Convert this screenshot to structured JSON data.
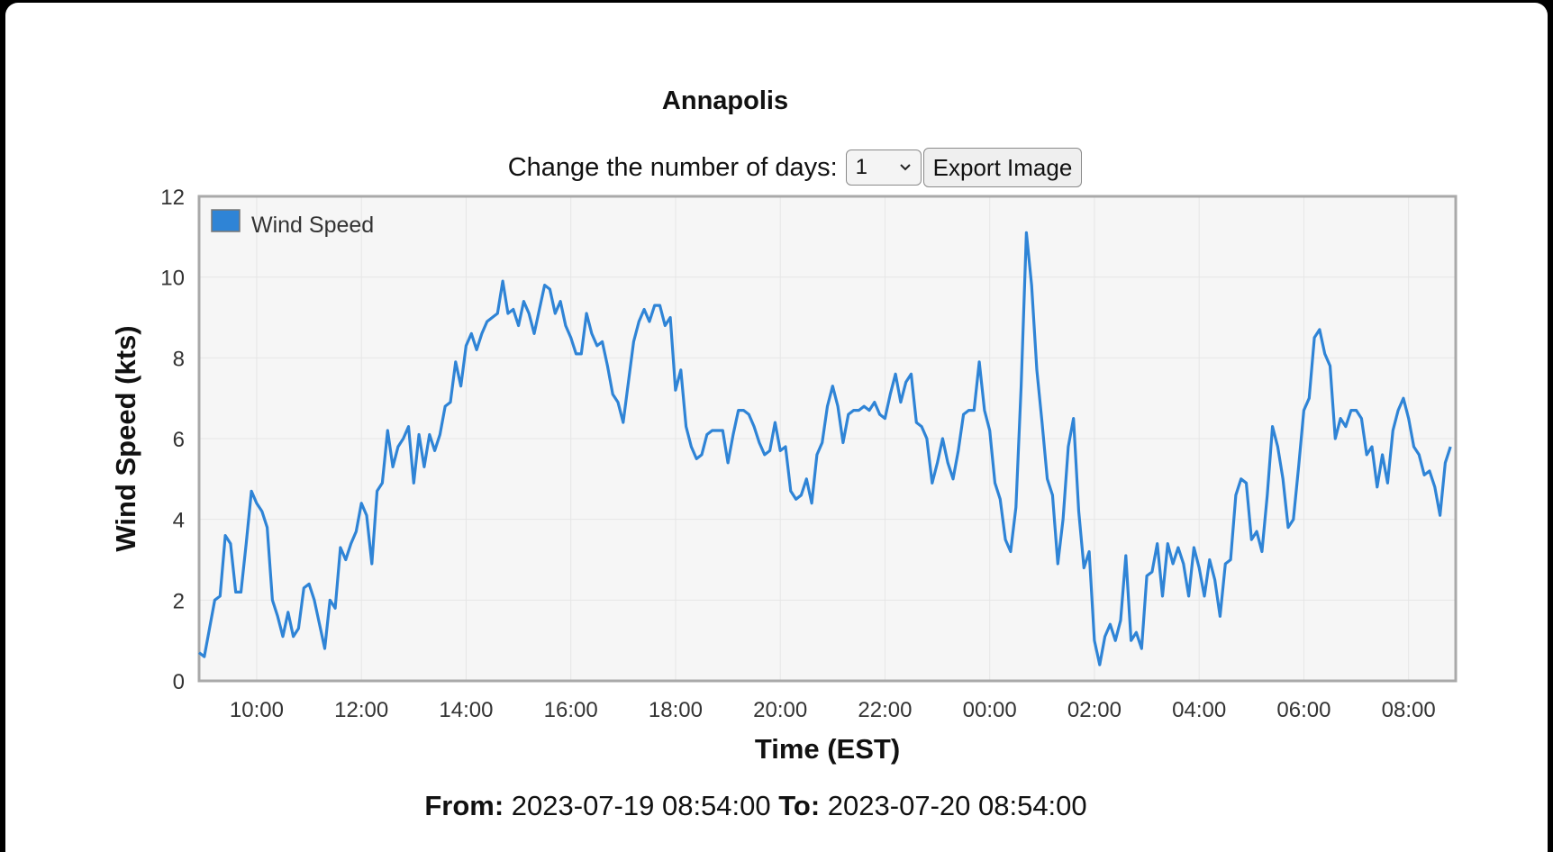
{
  "title": "Annapolis",
  "controls": {
    "days_label": "Change the number of days:",
    "days_value": "1",
    "export_label": "Export Image"
  },
  "range": {
    "from_label": "From:",
    "from_value": "2023-07-19 08:54:00",
    "to_label": "To:",
    "to_value": "2023-07-20 08:54:00"
  },
  "colors": {
    "line": "#2f84d6",
    "plot_background": "#f6f6f6",
    "plot_border": "#a9a9a9",
    "grid": "#e6e6e6"
  },
  "chart_data": {
    "type": "line",
    "title": "Annapolis",
    "xlabel": "Time (EST)",
    "ylabel": "Wind Speed (kts)",
    "ylim": [
      0,
      12
    ],
    "yticks": [
      0,
      2,
      4,
      6,
      8,
      10,
      12
    ],
    "xlim": [
      "2023-07-19 08:54",
      "2023-07-20 08:54"
    ],
    "xticks": [
      {
        "time": "2023-07-19 10:00",
        "label": "10:00"
      },
      {
        "time": "2023-07-19 12:00",
        "label": "12:00"
      },
      {
        "time": "2023-07-19 14:00",
        "label": "14:00"
      },
      {
        "time": "2023-07-19 16:00",
        "label": "16:00"
      },
      {
        "time": "2023-07-19 18:00",
        "label": "18:00"
      },
      {
        "time": "2023-07-19 20:00",
        "label": "20:00"
      },
      {
        "time": "2023-07-19 22:00",
        "label": "22:00"
      },
      {
        "time": "2023-07-20 00:00",
        "label": "00:00"
      },
      {
        "time": "2023-07-20 02:00",
        "label": "02:00"
      },
      {
        "time": "2023-07-20 04:00",
        "label": "04:00"
      },
      {
        "time": "2023-07-20 06:00",
        "label": "06:00"
      },
      {
        "time": "2023-07-20 08:00",
        "label": "08:00"
      }
    ],
    "grid": true,
    "legend": {
      "position": "top-left"
    },
    "series": [
      {
        "name": "Wind Speed",
        "color": "#2f84d6",
        "x": [
          "2023-07-19 08:54",
          "2023-07-19 09:00",
          "2023-07-19 09:06",
          "2023-07-19 09:12",
          "2023-07-19 09:18",
          "2023-07-19 09:24",
          "2023-07-19 09:30",
          "2023-07-19 09:36",
          "2023-07-19 09:42",
          "2023-07-19 09:48",
          "2023-07-19 09:54",
          "2023-07-19 10:00",
          "2023-07-19 10:06",
          "2023-07-19 10:12",
          "2023-07-19 10:18",
          "2023-07-19 10:24",
          "2023-07-19 10:30",
          "2023-07-19 10:36",
          "2023-07-19 10:42",
          "2023-07-19 10:48",
          "2023-07-19 10:54",
          "2023-07-19 11:00",
          "2023-07-19 11:06",
          "2023-07-19 11:12",
          "2023-07-19 11:18",
          "2023-07-19 11:24",
          "2023-07-19 11:30",
          "2023-07-19 11:36",
          "2023-07-19 11:42",
          "2023-07-19 11:48",
          "2023-07-19 11:54",
          "2023-07-19 12:00",
          "2023-07-19 12:06",
          "2023-07-19 12:12",
          "2023-07-19 12:18",
          "2023-07-19 12:24",
          "2023-07-19 12:30",
          "2023-07-19 12:36",
          "2023-07-19 12:42",
          "2023-07-19 12:48",
          "2023-07-19 12:54",
          "2023-07-19 13:00",
          "2023-07-19 13:06",
          "2023-07-19 13:12",
          "2023-07-19 13:18",
          "2023-07-19 13:24",
          "2023-07-19 13:30",
          "2023-07-19 13:36",
          "2023-07-19 13:42",
          "2023-07-19 13:48",
          "2023-07-19 13:54",
          "2023-07-19 14:00",
          "2023-07-19 14:06",
          "2023-07-19 14:12",
          "2023-07-19 14:18",
          "2023-07-19 14:24",
          "2023-07-19 14:30",
          "2023-07-19 14:36",
          "2023-07-19 14:42",
          "2023-07-19 14:48",
          "2023-07-19 14:54",
          "2023-07-19 15:00",
          "2023-07-19 15:06",
          "2023-07-19 15:12",
          "2023-07-19 15:18",
          "2023-07-19 15:24",
          "2023-07-19 15:30",
          "2023-07-19 15:36",
          "2023-07-19 15:42",
          "2023-07-19 15:48",
          "2023-07-19 15:54",
          "2023-07-19 16:00",
          "2023-07-19 16:06",
          "2023-07-19 16:12",
          "2023-07-19 16:18",
          "2023-07-19 16:24",
          "2023-07-19 16:30",
          "2023-07-19 16:36",
          "2023-07-19 16:42",
          "2023-07-19 16:48",
          "2023-07-19 16:54",
          "2023-07-19 17:00",
          "2023-07-19 17:06",
          "2023-07-19 17:12",
          "2023-07-19 17:18",
          "2023-07-19 17:24",
          "2023-07-19 17:30",
          "2023-07-19 17:36",
          "2023-07-19 17:42",
          "2023-07-19 17:48",
          "2023-07-19 17:54",
          "2023-07-19 18:00",
          "2023-07-19 18:06",
          "2023-07-19 18:12",
          "2023-07-19 18:18",
          "2023-07-19 18:24",
          "2023-07-19 18:30",
          "2023-07-19 18:36",
          "2023-07-19 18:42",
          "2023-07-19 18:48",
          "2023-07-19 18:54",
          "2023-07-19 19:00",
          "2023-07-19 19:06",
          "2023-07-19 19:12",
          "2023-07-19 19:18",
          "2023-07-19 19:24",
          "2023-07-19 19:30",
          "2023-07-19 19:36",
          "2023-07-19 19:42",
          "2023-07-19 19:48",
          "2023-07-19 19:54",
          "2023-07-19 20:00",
          "2023-07-19 20:06",
          "2023-07-19 20:12",
          "2023-07-19 20:18",
          "2023-07-19 20:24",
          "2023-07-19 20:30",
          "2023-07-19 20:36",
          "2023-07-19 20:42",
          "2023-07-19 20:48",
          "2023-07-19 20:54",
          "2023-07-19 21:00",
          "2023-07-19 21:06",
          "2023-07-19 21:12",
          "2023-07-19 21:18",
          "2023-07-19 21:24",
          "2023-07-19 21:30",
          "2023-07-19 21:36",
          "2023-07-19 21:42",
          "2023-07-19 21:48",
          "2023-07-19 21:54",
          "2023-07-19 22:00",
          "2023-07-19 22:06",
          "2023-07-19 22:12",
          "2023-07-19 22:18",
          "2023-07-19 22:24",
          "2023-07-19 22:30",
          "2023-07-19 22:36",
          "2023-07-19 22:42",
          "2023-07-19 22:48",
          "2023-07-19 22:54",
          "2023-07-19 23:00",
          "2023-07-19 23:06",
          "2023-07-19 23:12",
          "2023-07-19 23:18",
          "2023-07-19 23:24",
          "2023-07-19 23:30",
          "2023-07-19 23:36",
          "2023-07-19 23:42",
          "2023-07-19 23:48",
          "2023-07-19 23:54",
          "2023-07-20 00:00",
          "2023-07-20 00:06",
          "2023-07-20 00:12",
          "2023-07-20 00:18",
          "2023-07-20 00:24",
          "2023-07-20 00:30",
          "2023-07-20 00:36",
          "2023-07-20 00:42",
          "2023-07-20 00:48",
          "2023-07-20 00:54",
          "2023-07-20 01:00",
          "2023-07-20 01:06",
          "2023-07-20 01:12",
          "2023-07-20 01:18",
          "2023-07-20 01:24",
          "2023-07-20 01:30",
          "2023-07-20 01:36",
          "2023-07-20 01:42",
          "2023-07-20 01:48",
          "2023-07-20 01:54",
          "2023-07-20 02:00",
          "2023-07-20 02:06",
          "2023-07-20 02:12",
          "2023-07-20 02:18",
          "2023-07-20 02:24",
          "2023-07-20 02:30",
          "2023-07-20 02:36",
          "2023-07-20 02:42",
          "2023-07-20 02:48",
          "2023-07-20 02:54",
          "2023-07-20 03:00",
          "2023-07-20 03:06",
          "2023-07-20 03:12",
          "2023-07-20 03:18",
          "2023-07-20 03:24",
          "2023-07-20 03:30",
          "2023-07-20 03:36",
          "2023-07-20 03:42",
          "2023-07-20 03:48",
          "2023-07-20 03:54",
          "2023-07-20 04:00",
          "2023-07-20 04:06",
          "2023-07-20 04:12",
          "2023-07-20 04:18",
          "2023-07-20 04:24",
          "2023-07-20 04:30",
          "2023-07-20 04:36",
          "2023-07-20 04:42",
          "2023-07-20 04:48",
          "2023-07-20 04:54",
          "2023-07-20 05:00",
          "2023-07-20 05:06",
          "2023-07-20 05:12",
          "2023-07-20 05:18",
          "2023-07-20 05:24",
          "2023-07-20 05:30",
          "2023-07-20 05:36",
          "2023-07-20 05:42",
          "2023-07-20 05:48",
          "2023-07-20 05:54",
          "2023-07-20 06:00",
          "2023-07-20 06:06",
          "2023-07-20 06:12",
          "2023-07-20 06:18",
          "2023-07-20 06:24",
          "2023-07-20 06:30",
          "2023-07-20 06:36",
          "2023-07-20 06:42",
          "2023-07-20 06:48",
          "2023-07-20 06:54",
          "2023-07-20 07:00",
          "2023-07-20 07:06",
          "2023-07-20 07:12",
          "2023-07-20 07:18",
          "2023-07-20 07:24",
          "2023-07-20 07:30",
          "2023-07-20 07:36",
          "2023-07-20 07:42",
          "2023-07-20 07:48",
          "2023-07-20 07:54",
          "2023-07-20 08:00",
          "2023-07-20 08:06",
          "2023-07-20 08:12",
          "2023-07-20 08:18",
          "2023-07-20 08:24",
          "2023-07-20 08:30",
          "2023-07-20 08:36",
          "2023-07-20 08:42",
          "2023-07-20 08:48"
        ],
        "y": [
          0.7,
          0.6,
          1.3,
          2.0,
          2.1,
          3.6,
          3.4,
          2.2,
          2.2,
          3.4,
          4.7,
          4.4,
          4.2,
          3.8,
          2.0,
          1.6,
          1.1,
          1.7,
          1.1,
          1.3,
          2.3,
          2.4,
          2.0,
          1.4,
          0.8,
          2.0,
          1.8,
          3.3,
          3.0,
          3.4,
          3.7,
          4.4,
          4.1,
          2.9,
          4.7,
          4.9,
          6.2,
          5.3,
          5.8,
          6.0,
          6.3,
          4.9,
          6.1,
          5.3,
          6.1,
          5.7,
          6.1,
          6.8,
          6.9,
          7.9,
          7.3,
          8.3,
          8.6,
          8.2,
          8.6,
          8.9,
          9.0,
          9.1,
          9.9,
          9.1,
          9.2,
          8.8,
          9.4,
          9.1,
          8.6,
          9.2,
          9.8,
          9.7,
          9.1,
          9.4,
          8.8,
          8.5,
          8.1,
          8.1,
          9.1,
          8.6,
          8.3,
          8.4,
          7.8,
          7.1,
          6.9,
          6.4,
          7.4,
          8.4,
          8.9,
          9.2,
          8.9,
          9.3,
          9.3,
          8.8,
          9.0,
          7.2,
          7.7,
          6.3,
          5.8,
          5.5,
          5.6,
          6.1,
          6.2,
          6.2,
          6.2,
          5.4,
          6.1,
          6.7,
          6.7,
          6.6,
          6.3,
          5.9,
          5.6,
          5.7,
          6.4,
          5.7,
          5.8,
          4.7,
          4.5,
          4.6,
          5.0,
          4.4,
          5.6,
          5.9,
          6.8,
          7.3,
          6.8,
          5.9,
          6.6,
          6.7,
          6.7,
          6.8,
          6.7,
          6.9,
          6.6,
          6.5,
          7.1,
          7.6,
          6.9,
          7.4,
          7.6,
          6.4,
          6.3,
          6.0,
          4.9,
          5.4,
          6.0,
          5.4,
          5.0,
          5.7,
          6.6,
          6.7,
          6.7,
          7.9,
          6.7,
          6.2,
          4.9,
          4.5,
          3.5,
          3.2,
          4.3,
          7.3,
          11.1,
          9.8,
          7.7,
          6.4,
          5.0,
          4.6,
          2.9,
          4.0,
          5.8,
          6.5,
          4.2,
          2.8,
          3.2,
          1.0,
          0.4,
          1.1,
          1.4,
          1.0,
          1.5,
          3.1,
          1.0,
          1.2,
          0.8,
          2.6,
          2.7,
          3.4,
          2.1,
          3.4,
          2.9,
          3.3,
          2.9,
          2.1,
          3.3,
          2.8,
          2.1,
          3.0,
          2.5,
          1.6,
          2.9,
          3.0,
          4.6,
          5.0,
          4.9,
          3.5,
          3.7,
          3.2,
          4.6,
          6.3,
          5.8,
          5.0,
          3.8,
          4.0,
          5.3,
          6.7,
          7.0,
          8.5,
          8.7,
          8.1,
          7.8,
          6.0,
          6.5,
          6.3,
          6.7,
          6.7,
          6.5,
          5.6,
          5.8,
          4.8,
          5.6,
          4.9,
          6.2,
          6.7,
          7.0,
          6.5,
          5.8,
          5.6,
          5.1,
          5.2,
          4.8,
          4.1,
          5.4,
          5.8
        ]
      }
    ]
  }
}
